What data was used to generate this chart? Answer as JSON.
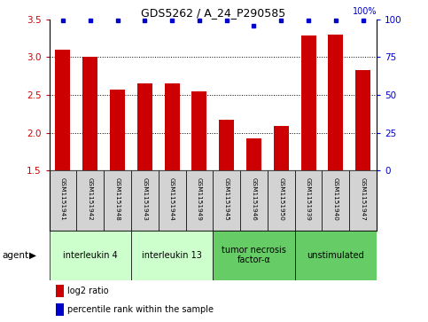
{
  "title": "GDS5262 / A_24_P290585",
  "samples": [
    "GSM1151941",
    "GSM1151942",
    "GSM1151948",
    "GSM1151943",
    "GSM1151944",
    "GSM1151949",
    "GSM1151945",
    "GSM1151946",
    "GSM1151950",
    "GSM1151939",
    "GSM1151940",
    "GSM1151947"
  ],
  "log2_values": [
    3.1,
    3.01,
    2.57,
    2.65,
    2.65,
    2.55,
    2.17,
    1.93,
    2.09,
    3.29,
    3.3,
    2.83
  ],
  "percentile_values": [
    99,
    99,
    99,
    99,
    99,
    99,
    99,
    96,
    99,
    99,
    99,
    99
  ],
  "bar_color": "#cc0000",
  "dot_color": "#0000cc",
  "ylim_left": [
    1.5,
    3.5
  ],
  "ylim_right": [
    0,
    100
  ],
  "yticks_left": [
    1.5,
    2.0,
    2.5,
    3.0,
    3.5
  ],
  "yticks_right": [
    0,
    25,
    50,
    75,
    100
  ],
  "gridlines": [
    2.0,
    2.5,
    3.0
  ],
  "agents": [
    {
      "label": "interleukin 4",
      "start": 0,
      "end": 3,
      "color": "#ccffcc"
    },
    {
      "label": "interleukin 13",
      "start": 3,
      "end": 6,
      "color": "#ccffcc"
    },
    {
      "label": "tumor necrosis\nfactor-α",
      "start": 6,
      "end": 9,
      "color": "#66cc66"
    },
    {
      "label": "unstimulated",
      "start": 9,
      "end": 12,
      "color": "#66cc66"
    }
  ],
  "legend_red_label": "log2 ratio",
  "legend_blue_label": "percentile rank within the sample",
  "agent_label": "agent",
  "bar_width": 0.55,
  "sample_bg": "#d3d3d3",
  "spine_color": "#000000"
}
